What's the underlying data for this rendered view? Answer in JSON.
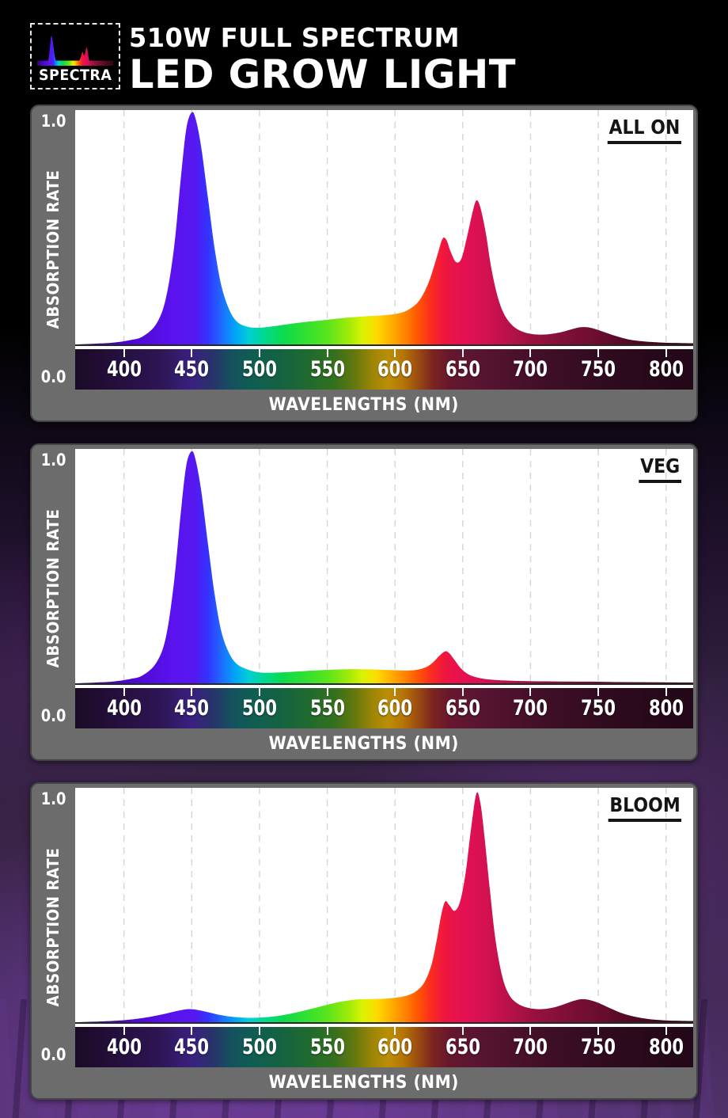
{
  "header": {
    "logo_text": "SPECTRA",
    "title_line1": "510W FULL SPECTRUM",
    "title_line2": "LED GROW LIGHT"
  },
  "axis": {
    "y_max_label": "1.0",
    "y_min_label": "0.0",
    "y_axis_title": "ABSORPTION RATE",
    "x_axis_title": "WAVELENGTHS (NM)",
    "x_ticks": [
      400,
      450,
      500,
      550,
      600,
      650,
      700,
      750,
      800
    ],
    "x_domain_nm": [
      364,
      820
    ],
    "y_domain": [
      0,
      1
    ]
  },
  "colors": {
    "panel_gray": "#6c6c6c",
    "panel_border": "#454545",
    "plot_bg": "#ffffff",
    "gridline": "#d4d4d4",
    "badge_text": "#141414",
    "axis_line_white": "#ffffff",
    "spectrum_stops": [
      [
        364,
        "#2d0a5e"
      ],
      [
        400,
        "#4b06c8"
      ],
      [
        435,
        "#5a12ee"
      ],
      [
        452,
        "#5618f0"
      ],
      [
        462,
        "#3333ff"
      ],
      [
        472,
        "#1f6bff"
      ],
      [
        482,
        "#00a4f8"
      ],
      [
        492,
        "#00cfd6"
      ],
      [
        504,
        "#00d98e"
      ],
      [
        518,
        "#0ddb4b"
      ],
      [
        534,
        "#30e032"
      ],
      [
        550,
        "#5ae41c"
      ],
      [
        564,
        "#97ea0a"
      ],
      [
        576,
        "#d8f200"
      ],
      [
        586,
        "#fddd00"
      ],
      [
        596,
        "#ffb300"
      ],
      [
        606,
        "#ff8a00"
      ],
      [
        616,
        "#ff5a00"
      ],
      [
        626,
        "#fb2e1e"
      ],
      [
        636,
        "#ef163f"
      ],
      [
        650,
        "#e51052"
      ],
      [
        668,
        "#d31151"
      ],
      [
        688,
        "#b01147"
      ],
      [
        708,
        "#92103e"
      ],
      [
        728,
        "#7d0f38"
      ],
      [
        748,
        "#6d0d31"
      ],
      [
        768,
        "#570a28"
      ],
      [
        790,
        "#440820"
      ],
      [
        820,
        "#33061a"
      ]
    ],
    "band_stops": [
      [
        364,
        "#1b0a26"
      ],
      [
        400,
        "#261040"
      ],
      [
        428,
        "#2e1656"
      ],
      [
        450,
        "#3a2080"
      ],
      [
        465,
        "#28336a"
      ],
      [
        480,
        "#14525e"
      ],
      [
        495,
        "#0f5e52"
      ],
      [
        515,
        "#156242"
      ],
      [
        535,
        "#1f6a30"
      ],
      [
        555,
        "#33701e"
      ],
      [
        570,
        "#63780e"
      ],
      [
        583,
        "#9c8406"
      ],
      [
        595,
        "#bb8e05"
      ],
      [
        606,
        "#b57507"
      ],
      [
        616,
        "#9d4f10"
      ],
      [
        628,
        "#7c2420"
      ],
      [
        640,
        "#67172e"
      ],
      [
        660,
        "#591532"
      ],
      [
        690,
        "#4a112b"
      ],
      [
        720,
        "#3c0e25"
      ],
      [
        755,
        "#300b1f"
      ],
      [
        790,
        "#27091a"
      ],
      [
        820,
        "#220818"
      ]
    ]
  },
  "chart_data": [
    {
      "type": "area",
      "label": "ALL ON",
      "x_unit": "nm",
      "y_unit": "absorption rate",
      "points": [
        [
          364,
          0
        ],
        [
          378,
          0.003
        ],
        [
          392,
          0.008
        ],
        [
          404,
          0.018
        ],
        [
          414,
          0.035
        ],
        [
          424,
          0.09
        ],
        [
          431,
          0.2
        ],
        [
          437,
          0.42
        ],
        [
          442,
          0.72
        ],
        [
          446,
          0.93
        ],
        [
          450,
          1.0
        ],
        [
          453,
          0.97
        ],
        [
          457,
          0.85
        ],
        [
          462,
          0.63
        ],
        [
          467,
          0.41
        ],
        [
          472,
          0.25
        ],
        [
          478,
          0.145
        ],
        [
          484,
          0.095
        ],
        [
          492,
          0.075
        ],
        [
          500,
          0.072
        ],
        [
          510,
          0.078
        ],
        [
          522,
          0.088
        ],
        [
          536,
          0.098
        ],
        [
          550,
          0.106
        ],
        [
          564,
          0.115
        ],
        [
          578,
          0.121
        ],
        [
          592,
          0.126
        ],
        [
          602,
          0.133
        ],
        [
          610,
          0.15
        ],
        [
          618,
          0.19
        ],
        [
          625,
          0.27
        ],
        [
          631,
          0.38
        ],
        [
          635,
          0.455
        ],
        [
          638,
          0.45
        ],
        [
          641,
          0.4
        ],
        [
          645,
          0.355
        ],
        [
          649,
          0.37
        ],
        [
          653,
          0.46
        ],
        [
          657,
          0.565
        ],
        [
          660,
          0.62
        ],
        [
          663,
          0.59
        ],
        [
          667,
          0.48
        ],
        [
          671,
          0.33
        ],
        [
          676,
          0.2
        ],
        [
          681,
          0.125
        ],
        [
          687,
          0.08
        ],
        [
          694,
          0.055
        ],
        [
          702,
          0.044
        ],
        [
          712,
          0.043
        ],
        [
          722,
          0.052
        ],
        [
          730,
          0.065
        ],
        [
          737,
          0.074
        ],
        [
          744,
          0.072
        ],
        [
          752,
          0.058
        ],
        [
          762,
          0.038
        ],
        [
          772,
          0.022
        ],
        [
          784,
          0.013
        ],
        [
          798,
          0.008
        ],
        [
          810,
          0.006
        ],
        [
          820,
          0.005
        ]
      ]
    },
    {
      "type": "area",
      "label": "VEG",
      "x_unit": "nm",
      "y_unit": "absorption rate",
      "points": [
        [
          364,
          0
        ],
        [
          378,
          0.003
        ],
        [
          392,
          0.008
        ],
        [
          404,
          0.018
        ],
        [
          414,
          0.035
        ],
        [
          424,
          0.09
        ],
        [
          431,
          0.2
        ],
        [
          437,
          0.44
        ],
        [
          442,
          0.74
        ],
        [
          446,
          0.94
        ],
        [
          450,
          1.0
        ],
        [
          453,
          0.96
        ],
        [
          457,
          0.83
        ],
        [
          462,
          0.6
        ],
        [
          467,
          0.38
        ],
        [
          472,
          0.22
        ],
        [
          478,
          0.125
        ],
        [
          484,
          0.08
        ],
        [
          492,
          0.058
        ],
        [
          500,
          0.047
        ],
        [
          512,
          0.046
        ],
        [
          526,
          0.05
        ],
        [
          540,
          0.055
        ],
        [
          554,
          0.059
        ],
        [
          568,
          0.061
        ],
        [
          582,
          0.06
        ],
        [
          596,
          0.057
        ],
        [
          608,
          0.055
        ],
        [
          616,
          0.058
        ],
        [
          623,
          0.07
        ],
        [
          628,
          0.09
        ],
        [
          633,
          0.12
        ],
        [
          637,
          0.138
        ],
        [
          640,
          0.13
        ],
        [
          644,
          0.1
        ],
        [
          649,
          0.062
        ],
        [
          655,
          0.036
        ],
        [
          663,
          0.022
        ],
        [
          673,
          0.015
        ],
        [
          686,
          0.011
        ],
        [
          702,
          0.009
        ],
        [
          722,
          0.008
        ],
        [
          745,
          0.007
        ],
        [
          770,
          0.005
        ],
        [
          795,
          0.004
        ],
        [
          820,
          0.003
        ]
      ]
    },
    {
      "type": "area",
      "label": "BLOOM",
      "x_unit": "nm",
      "y_unit": "absorption rate",
      "points": [
        [
          364,
          0
        ],
        [
          382,
          0.003
        ],
        [
          398,
          0.008
        ],
        [
          410,
          0.015
        ],
        [
          420,
          0.024
        ],
        [
          430,
          0.036
        ],
        [
          438,
          0.047
        ],
        [
          444,
          0.054
        ],
        [
          450,
          0.056
        ],
        [
          456,
          0.051
        ],
        [
          463,
          0.042
        ],
        [
          471,
          0.031
        ],
        [
          480,
          0.023
        ],
        [
          489,
          0.019
        ],
        [
          498,
          0.019
        ],
        [
          508,
          0.023
        ],
        [
          518,
          0.031
        ],
        [
          528,
          0.043
        ],
        [
          538,
          0.057
        ],
        [
          548,
          0.072
        ],
        [
          558,
          0.086
        ],
        [
          566,
          0.094
        ],
        [
          574,
          0.099
        ],
        [
          583,
          0.1
        ],
        [
          592,
          0.101
        ],
        [
          601,
          0.106
        ],
        [
          609,
          0.115
        ],
        [
          616,
          0.135
        ],
        [
          622,
          0.175
        ],
        [
          627,
          0.25
        ],
        [
          631,
          0.36
        ],
        [
          634,
          0.46
        ],
        [
          637,
          0.52
        ],
        [
          640,
          0.505
        ],
        [
          644,
          0.48
        ],
        [
          648,
          0.52
        ],
        [
          652,
          0.64
        ],
        [
          656,
          0.83
        ],
        [
          660,
          0.985
        ],
        [
          663,
          0.945
        ],
        [
          666,
          0.8
        ],
        [
          670,
          0.57
        ],
        [
          674,
          0.36
        ],
        [
          679,
          0.2
        ],
        [
          684,
          0.12
        ],
        [
          690,
          0.082
        ],
        [
          698,
          0.062
        ],
        [
          707,
          0.056
        ],
        [
          716,
          0.062
        ],
        [
          725,
          0.078
        ],
        [
          733,
          0.094
        ],
        [
          740,
          0.099
        ],
        [
          748,
          0.088
        ],
        [
          757,
          0.065
        ],
        [
          766,
          0.042
        ],
        [
          776,
          0.025
        ],
        [
          788,
          0.013
        ],
        [
          800,
          0.008
        ],
        [
          810,
          0.006
        ],
        [
          820,
          0.005
        ]
      ]
    }
  ]
}
